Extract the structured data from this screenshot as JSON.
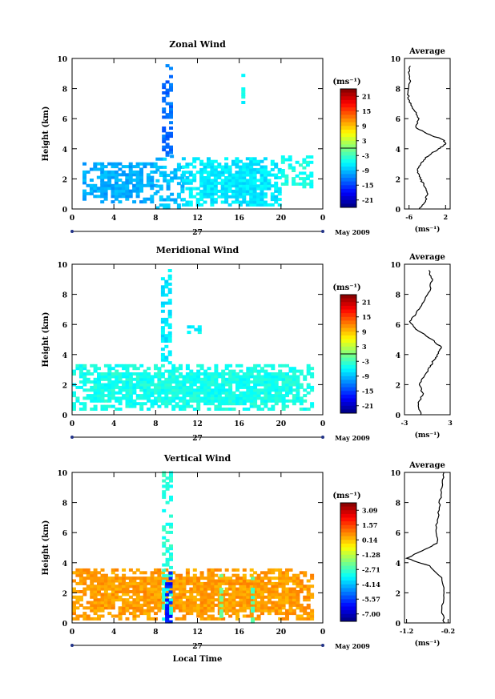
{
  "figure": {
    "date_label": "May 2009",
    "xlabel_bottom": "Local Time",
    "day_label": "27",
    "ylabel": "Height (km)",
    "units": "(ms⁻¹)",
    "average_title": "Average",
    "avg_unit": "(ms⁻¹)"
  },
  "chart_data": [
    {
      "type": "heatmap",
      "title": "Zonal Wind",
      "ylabel": "Height (km)",
      "xlim": [
        0,
        24
      ],
      "ylim": [
        0,
        10
      ],
      "xticks": [
        "0",
        "4",
        "8",
        "12",
        "16",
        "20",
        "0"
      ],
      "yticks": [
        "0",
        "2",
        "4",
        "6",
        "8",
        "10"
      ],
      "colorbar": {
        "label": "(ms⁻¹)",
        "ticks": [
          "21",
          "15",
          "9",
          "3",
          "-3",
          "-9",
          "-15",
          "-21"
        ],
        "range": [
          -24,
          24
        ]
      },
      "average": {
        "title": "Average",
        "xticks": [
          "-6",
          "2"
        ],
        "xlim": [
          -7,
          3
        ],
        "profile": [
          [
            -3.8,
            0
          ],
          [
            -2.5,
            0.5
          ],
          [
            -2,
            1
          ],
          [
            -2.6,
            1.5
          ],
          [
            -3.5,
            2
          ],
          [
            -4.2,
            2.5
          ],
          [
            -3.6,
            3
          ],
          [
            -2,
            3.5
          ],
          [
            0.5,
            4
          ],
          [
            2,
            4.3
          ],
          [
            1.5,
            4.6
          ],
          [
            -2,
            5
          ],
          [
            -4.5,
            5.4
          ],
          [
            -3.8,
            6
          ],
          [
            -5,
            6.6
          ],
          [
            -6,
            7.2
          ],
          [
            -6.3,
            7.8
          ],
          [
            -5.8,
            8.4
          ],
          [
            -6,
            9
          ],
          [
            -5.7,
            9.5
          ]
        ]
      },
      "field": {
        "bg_value": -9,
        "regions": [
          [
            1,
            8,
            0.4,
            3,
            -10
          ],
          [
            8,
            10.5,
            0,
            3.5,
            -9
          ],
          [
            10.5,
            20,
            0.2,
            3.3,
            -7
          ],
          [
            20,
            23,
            1.4,
            3.5,
            -5
          ],
          [
            8.6,
            9.3,
            3.5,
            9.6,
            -13
          ],
          [
            16.2,
            16.5,
            7,
            8.8,
            -6
          ]
        ]
      }
    },
    {
      "type": "heatmap",
      "title": "Meridional Wind",
      "ylabel": "Height (km)",
      "xlim": [
        0,
        24
      ],
      "ylim": [
        0,
        10
      ],
      "xticks": [
        "0",
        "4",
        "8",
        "12",
        "16",
        "20",
        "0"
      ],
      "yticks": [
        "0",
        "2",
        "4",
        "6",
        "8",
        "10"
      ],
      "colorbar": {
        "label": "(ms⁻¹)",
        "ticks": [
          "21",
          "15",
          "9",
          "3",
          "-3",
          "-9",
          "-15",
          "-21"
        ],
        "range": [
          -24,
          24
        ]
      },
      "average": {
        "title": "Average",
        "xticks": [
          "-3",
          "3"
        ],
        "xlim": [
          -3,
          3
        ],
        "profile": [
          [
            -0.8,
            0
          ],
          [
            -1.2,
            0.7
          ],
          [
            -0.6,
            1.4
          ],
          [
            -1,
            2
          ],
          [
            -0.4,
            2.6
          ],
          [
            0.4,
            3.2
          ],
          [
            0.8,
            3.6
          ],
          [
            1.4,
            4
          ],
          [
            1.8,
            4.5
          ],
          [
            0.6,
            5
          ],
          [
            -1.6,
            5.7
          ],
          [
            -2.3,
            6.2
          ],
          [
            -1.4,
            6.8
          ],
          [
            -0.4,
            7.5
          ],
          [
            0.4,
            8.4
          ],
          [
            0.6,
            9
          ],
          [
            0.2,
            9.6
          ]
        ]
      },
      "field": {
        "bg_value": -5,
        "regions": [
          [
            0,
            23,
            0.3,
            3.2,
            -5
          ],
          [
            8.5,
            9.3,
            3.2,
            9.6,
            -7
          ],
          [
            11,
            12.8,
            5.4,
            5.8,
            -6
          ]
        ]
      }
    },
    {
      "type": "heatmap",
      "title": "Vertical Wind",
      "ylabel": "Height (km)",
      "xlabel": "Local Time",
      "xlim": [
        0,
        24
      ],
      "ylim": [
        0,
        10
      ],
      "xticks": [
        "0",
        "4",
        "8",
        "12",
        "16",
        "20",
        "0"
      ],
      "yticks": [
        "0",
        "2",
        "4",
        "6",
        "8",
        "10"
      ],
      "colorbar": {
        "label": "(ms⁻¹)",
        "ticks": [
          "3.09",
          "1.57",
          "0.14",
          "-1.28",
          "-2.71",
          "-4.14",
          "-5.57",
          "-7.00"
        ],
        "range": [
          -7.7,
          3.8
        ]
      },
      "average": {
        "title": "Average",
        "xticks": [
          "-1.2",
          "-0.2"
        ],
        "xlim": [
          -1.25,
          -0.15
        ],
        "profile": [
          [
            -0.3,
            0
          ],
          [
            -0.35,
            1
          ],
          [
            -0.3,
            2
          ],
          [
            -0.35,
            3
          ],
          [
            -0.65,
            3.8
          ],
          [
            -1.2,
            4.3
          ],
          [
            -0.9,
            4.7
          ],
          [
            -0.45,
            5.3
          ],
          [
            -0.5,
            6
          ],
          [
            -0.45,
            7
          ],
          [
            -0.4,
            8
          ],
          [
            -0.35,
            9
          ],
          [
            -0.3,
            10
          ]
        ]
      },
      "field": {
        "bg_value": 0.3,
        "regions": [
          [
            0,
            23,
            0.2,
            3.5,
            0.6
          ],
          [
            8.6,
            9.6,
            0,
            9.9,
            -3
          ],
          [
            8.9,
            9.4,
            0,
            3.5,
            -6
          ],
          [
            14.1,
            14.3,
            0,
            3.4,
            -2
          ],
          [
            17.1,
            17.3,
            0,
            3.2,
            -2.5
          ]
        ]
      }
    }
  ]
}
